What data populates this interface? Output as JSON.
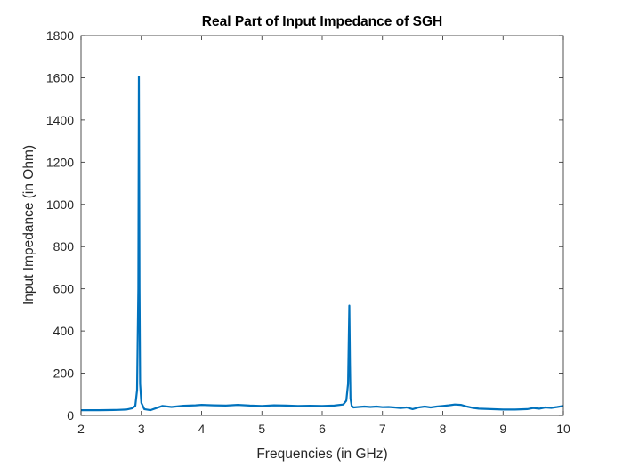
{
  "chart_data": {
    "type": "line",
    "title": "Real Part of Input Impedance of SGH",
    "xlabel": "Frequencies (in GHz)",
    "ylabel": "Input Impedance (in Ohm)",
    "xlim": [
      2,
      10
    ],
    "ylim": [
      0,
      1800
    ],
    "xticks": [
      2,
      3,
      4,
      5,
      6,
      7,
      8,
      9,
      10
    ],
    "yticks": [
      0,
      200,
      400,
      600,
      800,
      1000,
      1200,
      1400,
      1600,
      1800
    ],
    "grid": false,
    "line_color": "#0072BD",
    "series": [
      {
        "x": [
          2.0,
          2.3,
          2.6,
          2.75,
          2.85,
          2.9,
          2.93,
          2.95,
          2.96,
          2.97,
          2.98,
          3.0,
          3.05,
          3.15,
          3.25,
          3.35,
          3.5,
          3.7,
          3.9,
          4.0,
          4.2,
          4.4,
          4.6,
          4.8,
          5.0,
          5.2,
          5.4,
          5.6,
          5.8,
          6.0,
          6.2,
          6.35,
          6.4,
          6.43,
          6.45,
          6.46,
          6.47,
          6.49,
          6.52,
          6.6,
          6.7,
          6.8,
          6.9,
          7.0,
          7.1,
          7.2,
          7.3,
          7.4,
          7.5,
          7.6,
          7.7,
          7.8,
          7.9,
          8.0,
          8.1,
          8.2,
          8.3,
          8.4,
          8.5,
          8.6,
          8.8,
          9.0,
          9.2,
          9.4,
          9.5,
          9.6,
          9.7,
          9.8,
          9.9,
          10.0
        ],
        "y": [
          25,
          25,
          26,
          28,
          34,
          45,
          120,
          600,
          1605,
          600,
          150,
          60,
          30,
          25,
          35,
          45,
          40,
          46,
          48,
          50,
          48,
          47,
          50,
          47,
          45,
          48,
          47,
          45,
          46,
          45,
          47,
          52,
          70,
          150,
          520,
          250,
          80,
          45,
          38,
          40,
          42,
          40,
          42,
          39,
          40,
          38,
          35,
          38,
          30,
          38,
          42,
          38,
          42,
          45,
          48,
          52,
          50,
          42,
          36,
          32,
          30,
          28,
          28,
          30,
          35,
          32,
          38,
          36,
          40,
          45
        ]
      }
    ]
  }
}
